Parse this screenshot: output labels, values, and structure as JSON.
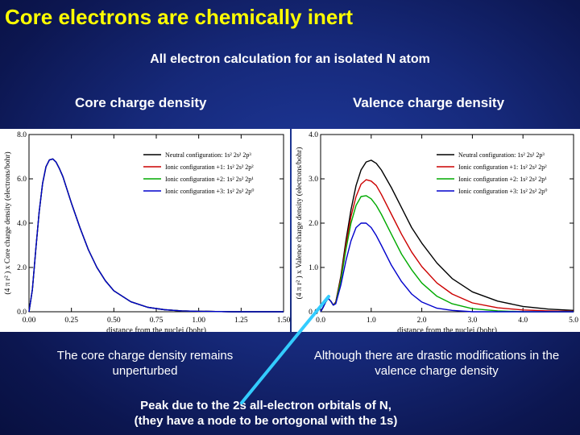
{
  "slide": {
    "title": "Core electrons are chemically inert",
    "subtitle": "All electron calculation for an isolated N atom",
    "core_heading": "Core charge density",
    "valence_heading": "Valence charge density",
    "core_caption": "The core charge density remains unperturbed",
    "valence_caption": "Although there are drastic modifications in the valence charge density",
    "peak_note_line1": "Peak due to the 2s all-electron orbitals of N,",
    "peak_note_line2": "(they have a node to be ortogonal with the 1s)",
    "colors": {
      "title": "#ffff00",
      "background": "#16297a",
      "pointer": "#33ccff"
    }
  },
  "chart_data": [
    {
      "type": "line",
      "ylabel": "(4 π r² ) x Core charge density (electrons/bohr)",
      "xlabel": "distance from the nuclei (bohr)",
      "xlim": [
        0,
        1.5
      ],
      "ylim": [
        0,
        8
      ],
      "xticks": [
        0.0,
        0.25,
        0.5,
        0.75,
        1.0,
        1.25,
        1.5
      ],
      "xtick_labels": [
        "0.00",
        "0.25",
        "0.50",
        "0.75",
        "1.00",
        "1.25",
        "1.50"
      ],
      "yticks": [
        0,
        2,
        4,
        6,
        8
      ],
      "ytick_labels": [
        "0.0",
        "2.0",
        "4.0",
        "6.0",
        "8.0"
      ],
      "legend_position": "top-right",
      "x": [
        0,
        0.02,
        0.04,
        0.06,
        0.08,
        0.1,
        0.12,
        0.14,
        0.16,
        0.18,
        0.2,
        0.25,
        0.3,
        0.35,
        0.4,
        0.45,
        0.5,
        0.6,
        0.7,
        0.8,
        0.9,
        1.0,
        1.1,
        1.2,
        1.3,
        1.4,
        1.5
      ],
      "series": [
        {
          "name": "Neutral configuration: 1s² 2s² 2p³",
          "color": "#000000",
          "values": [
            0,
            1.0,
            2.8,
            4.5,
            5.8,
            6.55,
            6.85,
            6.9,
            6.75,
            6.45,
            6.1,
            4.9,
            3.8,
            2.8,
            2.0,
            1.4,
            0.95,
            0.45,
            0.2,
            0.09,
            0.04,
            0.02,
            0.01,
            0.0,
            0.0,
            0.0,
            0.0
          ]
        },
        {
          "name": "Ionic configuration +1: 1s² 2s² 2p²",
          "color": "#cc0000",
          "values": [
            0,
            1.0,
            2.8,
            4.5,
            5.8,
            6.55,
            6.85,
            6.9,
            6.75,
            6.45,
            6.1,
            4.9,
            3.8,
            2.8,
            2.0,
            1.4,
            0.95,
            0.45,
            0.2,
            0.09,
            0.04,
            0.02,
            0.01,
            0.0,
            0.0,
            0.0,
            0.0
          ]
        },
        {
          "name": "Ionic configuration +2: 1s² 2s² 2p¹",
          "color": "#00aa00",
          "values": [
            0,
            1.0,
            2.8,
            4.5,
            5.8,
            6.55,
            6.85,
            6.9,
            6.75,
            6.45,
            6.1,
            4.9,
            3.8,
            2.8,
            2.0,
            1.4,
            0.95,
            0.45,
            0.2,
            0.09,
            0.04,
            0.02,
            0.01,
            0.0,
            0.0,
            0.0,
            0.0
          ]
        },
        {
          "name": "Ionic configuration +3: 1s² 2s² 2p⁰",
          "color": "#0000cc",
          "values": [
            0,
            1.0,
            2.8,
            4.5,
            5.8,
            6.55,
            6.85,
            6.9,
            6.75,
            6.45,
            6.1,
            4.9,
            3.8,
            2.8,
            2.0,
            1.4,
            0.95,
            0.45,
            0.2,
            0.09,
            0.04,
            0.02,
            0.01,
            0.0,
            0.0,
            0.0,
            0.0
          ]
        }
      ]
    },
    {
      "type": "line",
      "ylabel": "(4 π r² ) x Valence charge density (electrons/bohr)",
      "xlabel": "distance from the nuclei (bohr)",
      "xlim": [
        0,
        5
      ],
      "ylim": [
        0,
        4
      ],
      "xticks": [
        0,
        1,
        2,
        3,
        4,
        5
      ],
      "xtick_labels": [
        "0.0",
        "1.0",
        "2.0",
        "3.0",
        "4.0",
        "5.0"
      ],
      "yticks": [
        0,
        1,
        2,
        3,
        4
      ],
      "ytick_labels": [
        "0.0",
        "1.0",
        "2.0",
        "3.0",
        "4.0"
      ],
      "legend_position": "top-right",
      "x": [
        0,
        0.05,
        0.1,
        0.15,
        0.2,
        0.25,
        0.3,
        0.4,
        0.5,
        0.6,
        0.7,
        0.8,
        0.9,
        1.0,
        1.1,
        1.2,
        1.4,
        1.6,
        1.8,
        2.0,
        2.3,
        2.6,
        3.0,
        3.5,
        4.0,
        4.5,
        5.0
      ],
      "series": [
        {
          "name": "Neutral configuration: 1s² 2s² 2p³",
          "color": "#000000",
          "values": [
            0,
            0.1,
            0.22,
            0.3,
            0.24,
            0.15,
            0.22,
            0.8,
            1.6,
            2.3,
            2.85,
            3.2,
            3.38,
            3.42,
            3.35,
            3.2,
            2.8,
            2.35,
            1.9,
            1.55,
            1.1,
            0.75,
            0.45,
            0.24,
            0.12,
            0.06,
            0.03
          ]
        },
        {
          "name": "Ionic configuration +1: 1s² 2s² 2p²",
          "color": "#cc0000",
          "values": [
            0,
            0.1,
            0.22,
            0.3,
            0.24,
            0.15,
            0.22,
            0.75,
            1.5,
            2.15,
            2.6,
            2.88,
            2.98,
            2.95,
            2.85,
            2.65,
            2.2,
            1.75,
            1.35,
            1.02,
            0.65,
            0.4,
            0.2,
            0.09,
            0.04,
            0.02,
            0.01
          ]
        },
        {
          "name": "Ionic configuration +2: 1s² 2s² 2p¹",
          "color": "#00aa00",
          "values": [
            0,
            0.1,
            0.22,
            0.3,
            0.24,
            0.15,
            0.2,
            0.7,
            1.4,
            2.0,
            2.4,
            2.6,
            2.62,
            2.55,
            2.4,
            2.2,
            1.75,
            1.3,
            0.95,
            0.65,
            0.35,
            0.18,
            0.07,
            0.02,
            0.0,
            0.0,
            0.0
          ]
        },
        {
          "name": "Ionic configuration +3: 1s² 2s² 2p⁰",
          "color": "#0000cc",
          "values": [
            0,
            0.1,
            0.22,
            0.3,
            0.24,
            0.15,
            0.18,
            0.6,
            1.15,
            1.6,
            1.9,
            2.0,
            2.0,
            1.9,
            1.72,
            1.5,
            1.05,
            0.68,
            0.4,
            0.22,
            0.08,
            0.03,
            0.0,
            0.0,
            0.0,
            0.0,
            0.0
          ]
        }
      ]
    }
  ]
}
